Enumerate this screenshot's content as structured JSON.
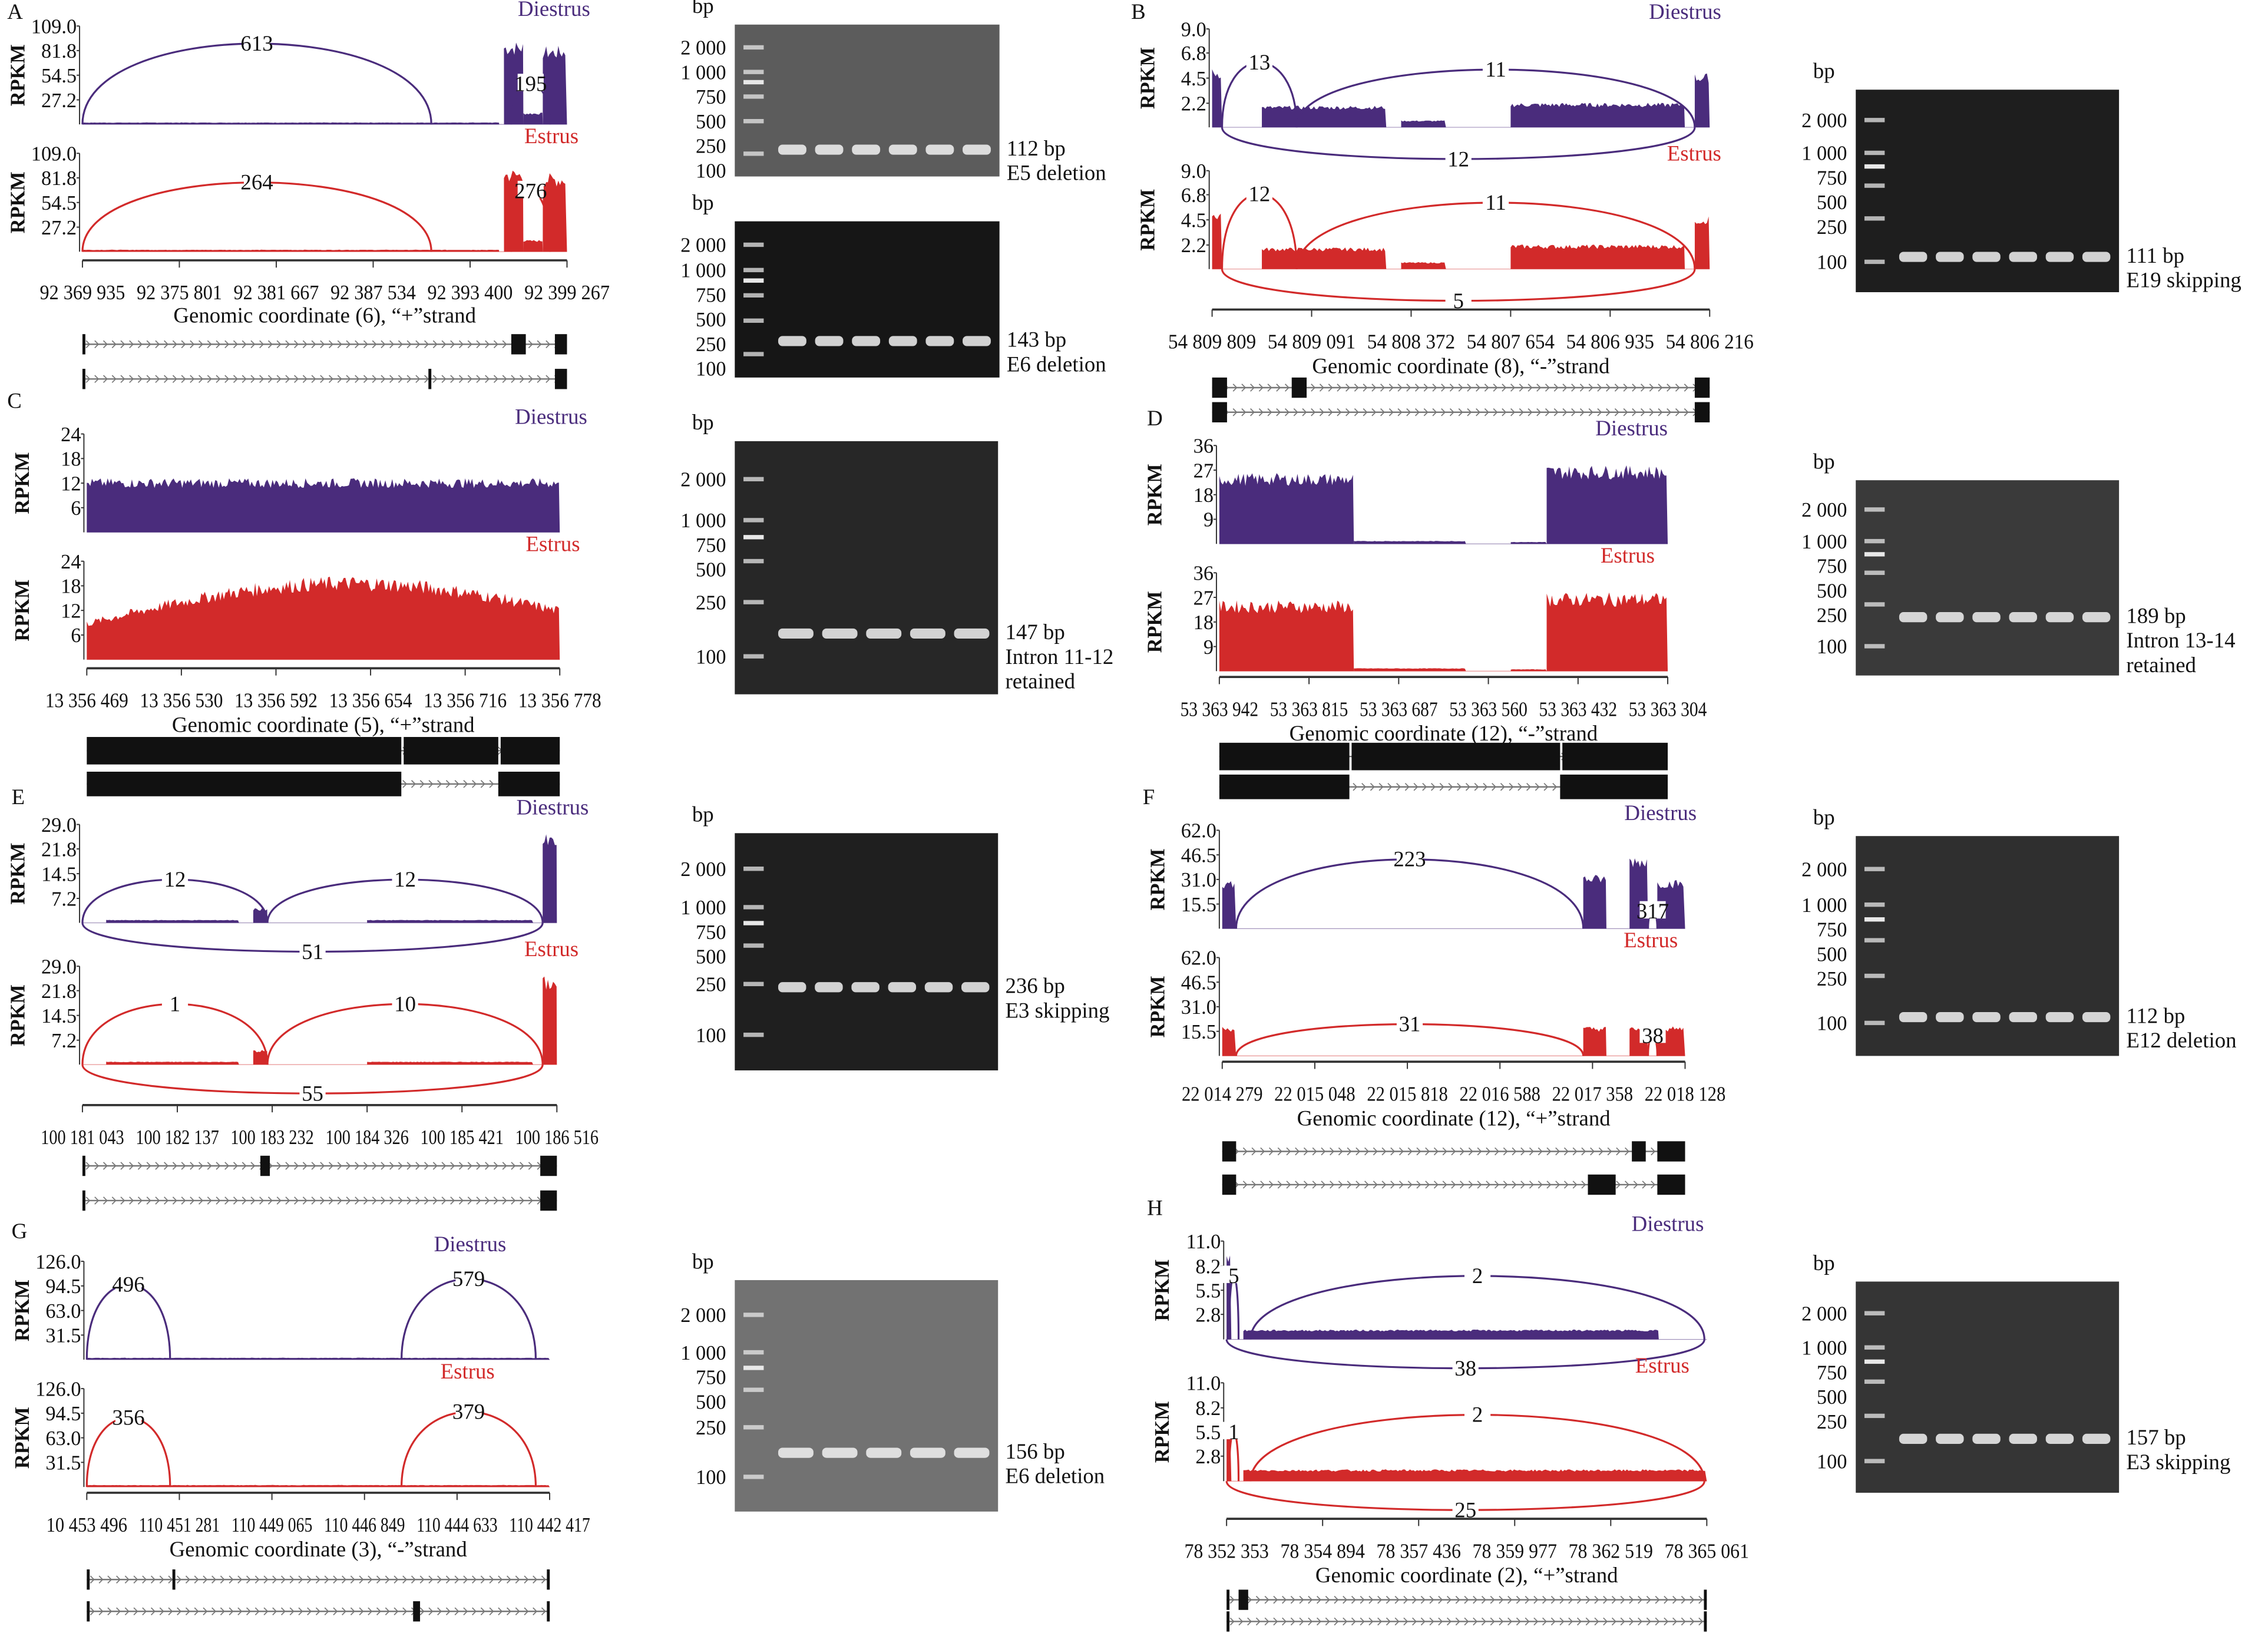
{
  "colors": {
    "diestrus": "#4a2c7c",
    "estrus": "#d22a2a",
    "exon": "#111111",
    "text": "#111111"
  },
  "y_axis_label": "RPKM",
  "gel_unit_label": "bp",
  "panels": [
    {
      "letter": "A",
      "tracks": [
        {
          "label": "Diestrus",
          "y_ticks": [
            "109.0",
            "81.8",
            "54.5",
            "27.2"
          ],
          "junctions": [
            "613",
            "195"
          ]
        },
        {
          "label": "Estrus",
          "y_ticks": [
            "109.0",
            "81.8",
            "54.5",
            "27.2"
          ],
          "junctions": [
            "264",
            "276"
          ]
        }
      ],
      "x_ticks": [
        "92 369 935",
        "92 375 801",
        "92 381 667",
        "92 387 534",
        "92 393 400",
        "92 399 267"
      ],
      "xlabel": "Genomic coordinate (6), “+”strand",
      "gels": [
        {
          "ladder": [
            "2 000",
            "1 000",
            "750",
            "500",
            "250",
            "100"
          ],
          "lanes": 6,
          "product_bp": 112,
          "product_label": [
            "112 bp",
            "E5 deletion"
          ]
        },
        {
          "ladder": [
            "2 000",
            "1 000",
            "750",
            "500",
            "250",
            "100"
          ],
          "lanes": 6,
          "product_bp": 143,
          "product_label": [
            "143 bp",
            "E6 deletion"
          ]
        }
      ]
    },
    {
      "letter": "B",
      "tracks": [
        {
          "label": "Diestrus",
          "y_ticks": [
            "9.0",
            "6.8",
            "4.5",
            "2.2"
          ],
          "junctions": [
            "13",
            "11",
            "12"
          ]
        },
        {
          "label": "Estrus",
          "y_ticks": [
            "9.0",
            "6.8",
            "4.5",
            "2.2"
          ],
          "junctions": [
            "12",
            "11",
            "5"
          ]
        }
      ],
      "x_ticks": [
        "54 809 809",
        "54 809 091",
        "54 808 372",
        "54 807 654",
        "54 806 935",
        "54 806 216"
      ],
      "xlabel": "Genomic coordinate (8), “-”strand",
      "gels": [
        {
          "ladder": [
            "2 000",
            "1 000",
            "750",
            "500",
            "250",
            "100"
          ],
          "lanes": 6,
          "product_bp": 111,
          "product_label": [
            "111 bp",
            "E19 skipping"
          ]
        }
      ]
    },
    {
      "letter": "C",
      "tracks": [
        {
          "label": "Diestrus",
          "y_ticks": [
            "24",
            "18",
            "12",
            "6"
          ],
          "junctions": []
        },
        {
          "label": "Estrus",
          "y_ticks": [
            "24",
            "18",
            "12",
            "6"
          ],
          "junctions": []
        }
      ],
      "x_ticks": [
        "13 356 469",
        "13 356 530",
        "13 356 592",
        "13 356 654",
        "13 356 716",
        "13 356 778"
      ],
      "xlabel": "Genomic coordinate (5), “+”strand",
      "gels": [
        {
          "ladder": [
            "2 000",
            "1 000",
            "750",
            "500",
            "250",
            "100"
          ],
          "lanes": 5,
          "product_bp": 147,
          "product_label": [
            "147 bp",
            "Intron 11-12",
            "retained"
          ]
        }
      ]
    },
    {
      "letter": "D",
      "tracks": [
        {
          "label": "Diestrus",
          "y_ticks": [
            "36",
            "27",
            "18",
            "9"
          ],
          "junctions": []
        },
        {
          "label": "Estrus",
          "y_ticks": [
            "36",
            "27",
            "18",
            "9"
          ],
          "junctions": []
        }
      ],
      "x_ticks": [
        "53 363 942",
        "53 363 815",
        "53 363 687",
        "53 363 560",
        "53 363 432",
        "53 363 304"
      ],
      "xlabel": "Genomic coordinate (12), “-”strand",
      "gels": [
        {
          "ladder": [
            "2 000",
            "1 000",
            "750",
            "500",
            "250",
            "100"
          ],
          "lanes": 6,
          "product_bp": 189,
          "product_label": [
            "189 bp",
            "Intron 13-14",
            "retained"
          ]
        }
      ]
    },
    {
      "letter": "E",
      "tracks": [
        {
          "label": "Diestrus",
          "y_ticks": [
            "29.0",
            "21.8",
            "14.5",
            "7.2"
          ],
          "junctions": [
            "12",
            "12",
            "51"
          ]
        },
        {
          "label": "Estrus",
          "y_ticks": [
            "29.0",
            "21.8",
            "14.5",
            "7.2"
          ],
          "junctions": [
            "1",
            "10",
            "55"
          ]
        }
      ],
      "x_ticks": [
        "100 181 043",
        "100 182 137",
        "100 183 232",
        "100 184 326",
        "100 185 421",
        "100 186 516"
      ],
      "xlabel": "",
      "gels": [
        {
          "ladder": [
            "2 000",
            "1 000",
            "750",
            "500",
            "250",
            "100"
          ],
          "lanes": 6,
          "product_bp": 236,
          "product_label": [
            "236 bp",
            "E3 skipping"
          ]
        }
      ]
    },
    {
      "letter": "F",
      "tracks": [
        {
          "label": "Diestrus",
          "y_ticks": [
            "62.0",
            "46.5",
            "31.0",
            "15.5"
          ],
          "junctions": [
            "223",
            "317"
          ]
        },
        {
          "label": "Estrus",
          "y_ticks": [
            "62.0",
            "46.5",
            "31.0",
            "15.5"
          ],
          "junctions": [
            "31",
            "38"
          ]
        }
      ],
      "x_ticks": [
        "22 014 279",
        "22 015 048",
        "22 015 818",
        "22 016 588",
        "22 017 358",
        "22 018 128"
      ],
      "xlabel": "Genomic coordinate (12), “+”strand",
      "gels": [
        {
          "ladder": [
            "2 000",
            "1 000",
            "750",
            "500",
            "250",
            "100"
          ],
          "lanes": 6,
          "product_bp": 112,
          "product_label": [
            "112 bp",
            "E12 deletion"
          ]
        }
      ]
    },
    {
      "letter": "G",
      "tracks": [
        {
          "label": "Diestrus",
          "y_ticks": [
            "126.0",
            "94.5",
            "63.0",
            "31.5"
          ],
          "junctions": [
            "496",
            "579"
          ]
        },
        {
          "label": "Estrus",
          "y_ticks": [
            "126.0",
            "94.5",
            "63.0",
            "31.5"
          ],
          "junctions": [
            "356",
            "379"
          ]
        }
      ],
      "x_ticks": [
        "10 453 496",
        "110 451 281",
        "110 449 065",
        "110 446 849",
        "110 444 633",
        "110 442 417"
      ],
      "xlabel": "Genomic coordinate (3), “-”strand",
      "gels": [
        {
          "ladder": [
            "2 000",
            "1 000",
            "750",
            "500",
            "250",
            "100"
          ],
          "lanes": 5,
          "product_bp": 156,
          "product_label": [
            "156 bp",
            "E6 deletion"
          ]
        }
      ]
    },
    {
      "letter": "H",
      "tracks": [
        {
          "label": "Diestrus",
          "y_ticks": [
            "11.0",
            "8.2",
            "5.5",
            "2.8"
          ],
          "junctions": [
            "5",
            "2",
            "38"
          ]
        },
        {
          "label": "Estrus",
          "y_ticks": [
            "11.0",
            "8.2",
            "5.5",
            "2.8"
          ],
          "junctions": [
            "1",
            "2",
            "25"
          ]
        }
      ],
      "x_ticks": [
        "78 352 353",
        "78 354 894",
        "78 357 436",
        "78 359 977",
        "78 362 519",
        "78 365 061"
      ],
      "xlabel": "Genomic coordinate (2), “+”strand",
      "gels": [
        {
          "ladder": [
            "2 000",
            "1 000",
            "750",
            "500",
            "250",
            "100"
          ],
          "lanes": 6,
          "product_bp": 157,
          "product_label": [
            "157 bp",
            "E3 skipping"
          ]
        }
      ]
    }
  ]
}
